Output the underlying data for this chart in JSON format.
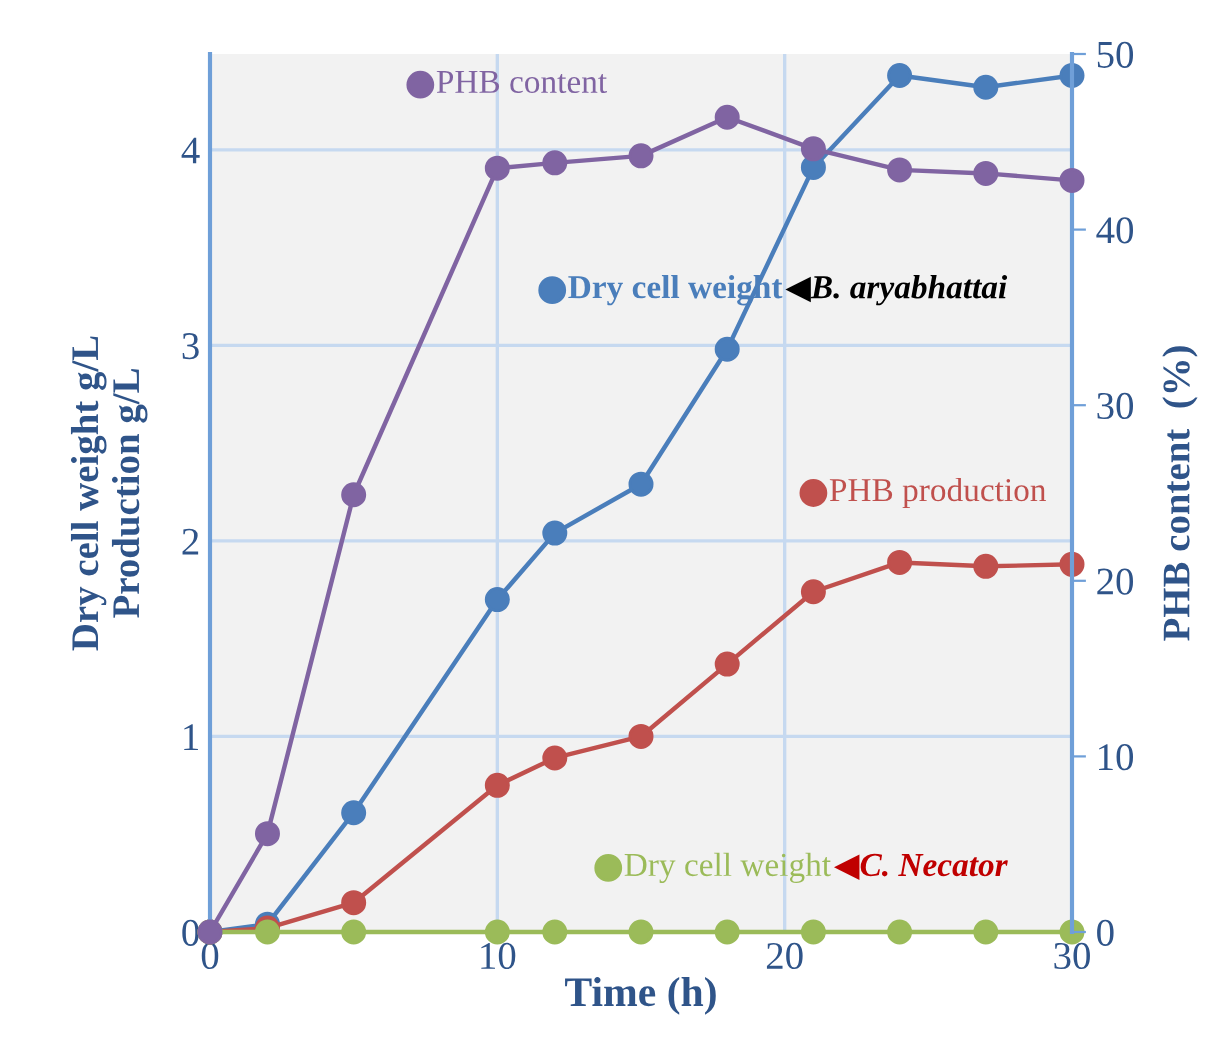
{
  "chart_data": {
    "type": "line",
    "xlabel": "Time (h)",
    "ylabel": "Dry cell weight g/L\nProduction g/L",
    "y2label": "PHB content  (%)",
    "x": [
      0,
      2,
      5,
      10,
      12,
      15,
      18,
      21,
      24,
      27,
      30
    ],
    "xlim": [
      0,
      30
    ],
    "xticks": [
      0,
      10,
      20,
      30
    ],
    "ylim": [
      0,
      4.49
    ],
    "yticks": [
      0,
      1,
      2,
      3,
      4
    ],
    "y2lim": [
      0,
      50
    ],
    "y2ticks": [
      0,
      10,
      20,
      30,
      40,
      50
    ],
    "grid": true,
    "legend": "top right",
    "marker": "circle",
    "line_style": "solid",
    "series": [
      {
        "name": "PHB content",
        "color": "#8064a2",
        "axis": "y2",
        "values": [
          0,
          5.6,
          24.9,
          43.5,
          43.8,
          44.2,
          46.4,
          44.6,
          43.4,
          43.2,
          42.8
        ]
      },
      {
        "name": "Dry cell weight",
        "color": "#4a7ebb",
        "values": [
          0,
          0.04,
          0.61,
          1.7,
          2.04,
          2.29,
          2.98,
          3.91,
          4.38,
          4.32,
          4.38
        ]
      },
      {
        "name": "PHB production",
        "color": "#c0504d",
        "values": [
          0,
          0.02,
          0.15,
          0.75,
          0.89,
          1.0,
          1.37,
          1.74,
          1.89,
          1.87,
          1.88
        ]
      },
      {
        "name": "Dry cell weight",
        "color": "#9bbb59",
        "values": [
          0,
          0,
          0,
          0,
          0,
          0,
          0,
          0,
          0,
          0,
          0
        ]
      }
    ],
    "annotations": [
      "◀B. aryabhattai",
      "◀C. Necator"
    ]
  }
}
